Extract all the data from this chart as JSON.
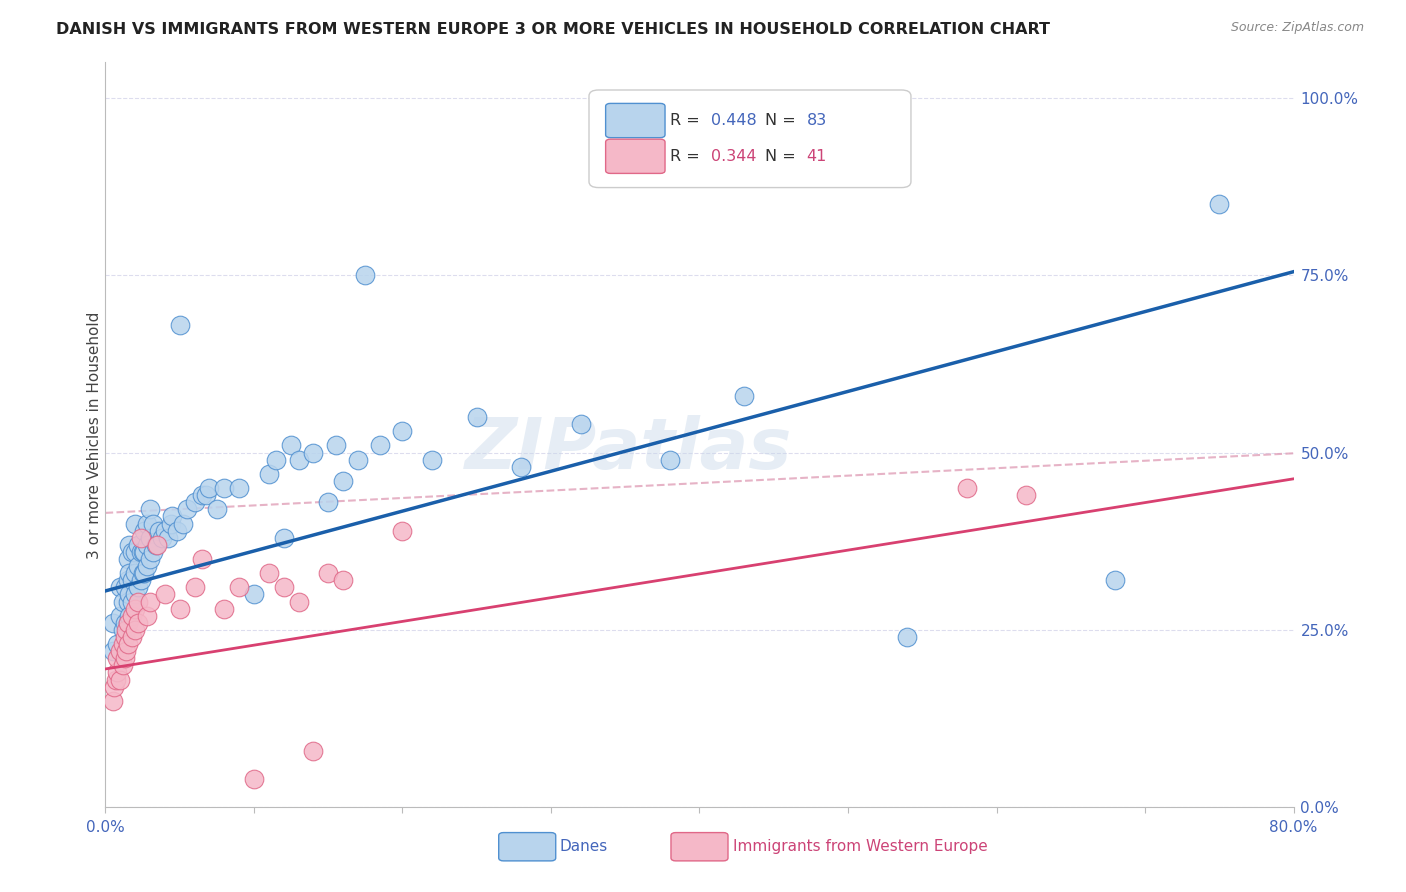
{
  "title": "DANISH VS IMMIGRANTS FROM WESTERN EUROPE 3 OR MORE VEHICLES IN HOUSEHOLD CORRELATION CHART",
  "source": "Source: ZipAtlas.com",
  "ylabel": "3 or more Vehicles in Household",
  "xlim": [
    0.0,
    0.8
  ],
  "ylim": [
    0.0,
    1.05
  ],
  "ytick_positions": [
    0.0,
    0.25,
    0.5,
    0.75,
    1.0
  ],
  "ytick_labels_right": [
    "0.0%",
    "25.0%",
    "50.0%",
    "75.0%",
    "100.0%"
  ],
  "legend_R1": "R = 0.448",
  "legend_N1": "N = 83",
  "legend_R2": "R = 0.344",
  "legend_N2": "N = 41",
  "color_danes": "#b8d4ed",
  "color_immigrants": "#f5b8c8",
  "color_danes_edge": "#5090d0",
  "color_immigrants_edge": "#e06888",
  "color_danes_line": "#1a5faa",
  "color_immigrants_line": "#d84070",
  "color_dashed": "#e0a0b8",
  "color_title": "#222222",
  "color_axis_labels": "#4466bb",
  "background_color": "#ffffff",
  "grid_color": "#ddddee",
  "watermark_text": "ZIPatlas",
  "danes_regression": {
    "slope": 0.5625,
    "intercept": 0.305
  },
  "immigrants_regression": {
    "slope": 0.335,
    "intercept": 0.195
  },
  "dashed_regression": {
    "slope": 0.105,
    "intercept": 0.415
  },
  "danes_x": [
    0.005,
    0.005,
    0.008,
    0.01,
    0.01,
    0.012,
    0.012,
    0.013,
    0.013,
    0.015,
    0.015,
    0.015,
    0.015,
    0.016,
    0.016,
    0.016,
    0.016,
    0.018,
    0.018,
    0.018,
    0.02,
    0.02,
    0.02,
    0.02,
    0.022,
    0.022,
    0.022,
    0.024,
    0.024,
    0.025,
    0.025,
    0.026,
    0.026,
    0.026,
    0.028,
    0.028,
    0.028,
    0.03,
    0.03,
    0.03,
    0.032,
    0.032,
    0.034,
    0.036,
    0.038,
    0.04,
    0.042,
    0.044,
    0.045,
    0.048,
    0.05,
    0.052,
    0.055,
    0.06,
    0.065,
    0.068,
    0.07,
    0.075,
    0.08,
    0.09,
    0.1,
    0.11,
    0.115,
    0.12,
    0.125,
    0.13,
    0.14,
    0.15,
    0.155,
    0.16,
    0.17,
    0.175,
    0.185,
    0.2,
    0.22,
    0.25,
    0.28,
    0.32,
    0.38,
    0.43,
    0.54,
    0.68,
    0.75
  ],
  "danes_y": [
    0.22,
    0.26,
    0.23,
    0.27,
    0.31,
    0.25,
    0.29,
    0.26,
    0.31,
    0.26,
    0.29,
    0.32,
    0.35,
    0.27,
    0.3,
    0.33,
    0.37,
    0.29,
    0.32,
    0.36,
    0.3,
    0.33,
    0.36,
    0.4,
    0.31,
    0.34,
    0.37,
    0.32,
    0.36,
    0.33,
    0.36,
    0.33,
    0.36,
    0.39,
    0.34,
    0.37,
    0.4,
    0.35,
    0.38,
    0.42,
    0.36,
    0.4,
    0.37,
    0.39,
    0.38,
    0.39,
    0.38,
    0.4,
    0.41,
    0.39,
    0.68,
    0.4,
    0.42,
    0.43,
    0.44,
    0.44,
    0.45,
    0.42,
    0.45,
    0.45,
    0.3,
    0.47,
    0.49,
    0.38,
    0.51,
    0.49,
    0.5,
    0.43,
    0.51,
    0.46,
    0.49,
    0.75,
    0.51,
    0.53,
    0.49,
    0.55,
    0.48,
    0.54,
    0.49,
    0.58,
    0.24,
    0.32,
    0.85
  ],
  "immigrants_x": [
    0.005,
    0.006,
    0.007,
    0.008,
    0.008,
    0.01,
    0.01,
    0.012,
    0.012,
    0.013,
    0.013,
    0.014,
    0.014,
    0.015,
    0.015,
    0.018,
    0.018,
    0.02,
    0.02,
    0.022,
    0.022,
    0.024,
    0.028,
    0.03,
    0.035,
    0.04,
    0.05,
    0.06,
    0.065,
    0.08,
    0.09,
    0.1,
    0.11,
    0.12,
    0.13,
    0.14,
    0.15,
    0.16,
    0.2,
    0.58,
    0.62
  ],
  "immigrants_y": [
    0.15,
    0.17,
    0.18,
    0.19,
    0.21,
    0.18,
    0.22,
    0.2,
    0.23,
    0.21,
    0.24,
    0.22,
    0.25,
    0.23,
    0.26,
    0.24,
    0.27,
    0.25,
    0.28,
    0.26,
    0.29,
    0.38,
    0.27,
    0.29,
    0.37,
    0.3,
    0.28,
    0.31,
    0.35,
    0.28,
    0.31,
    0.04,
    0.33,
    0.31,
    0.29,
    0.08,
    0.33,
    0.32,
    0.39,
    0.45,
    0.44
  ]
}
